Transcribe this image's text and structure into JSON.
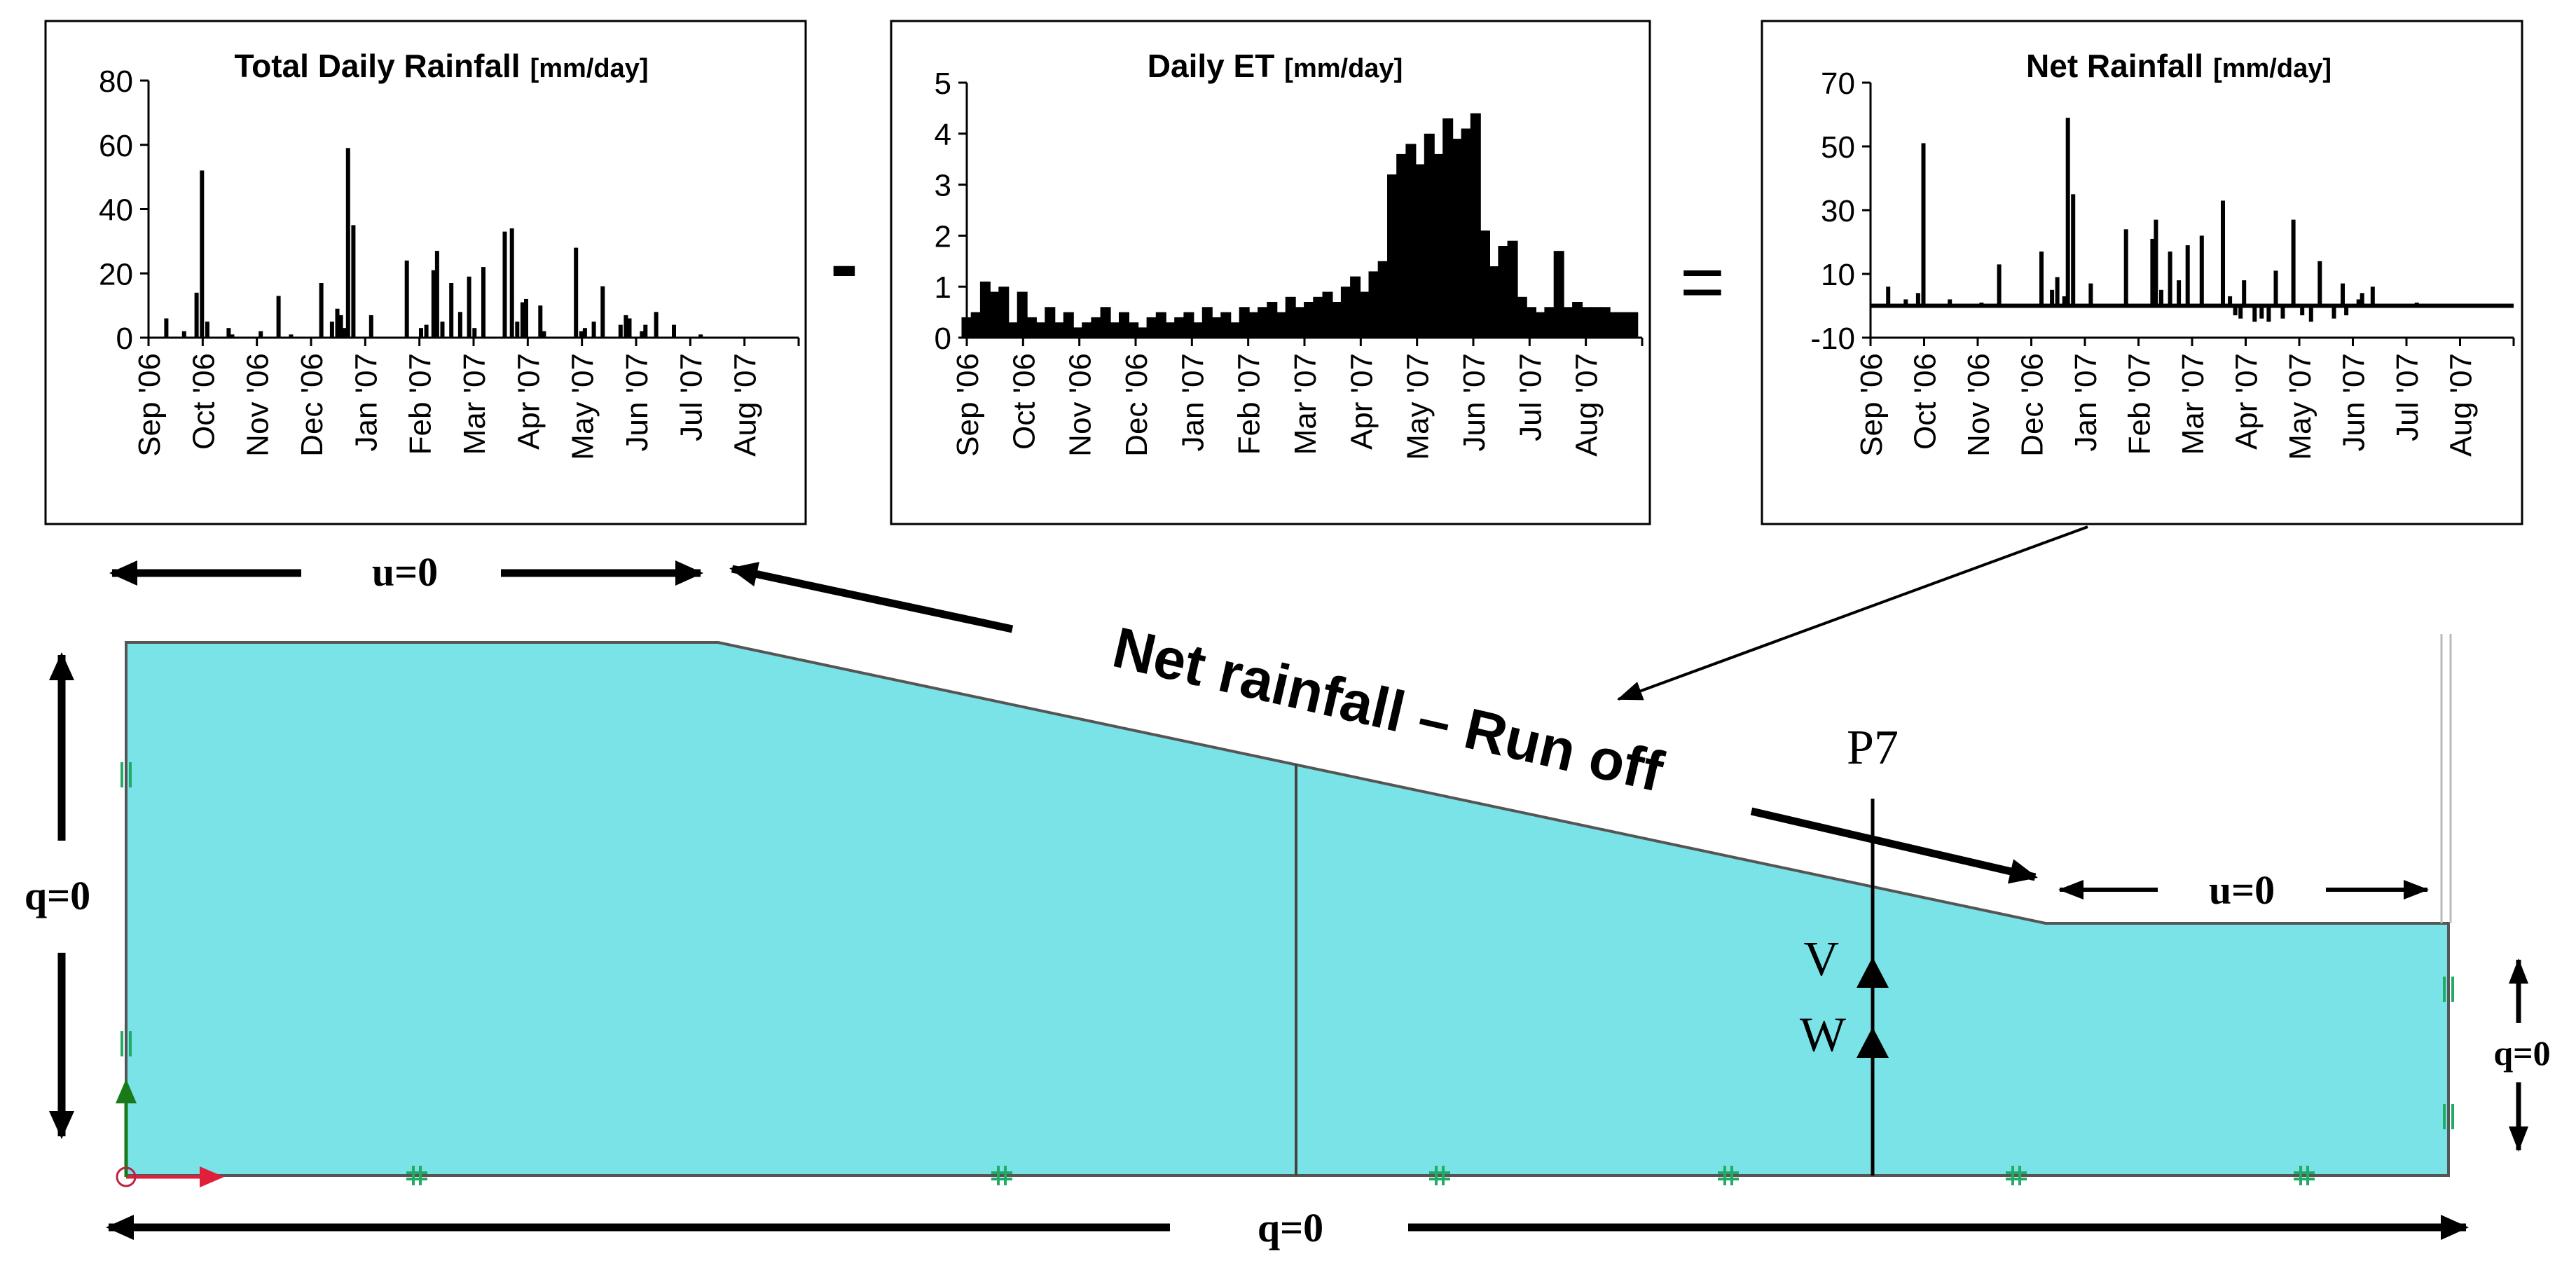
{
  "colors": {
    "domain_fill": "#7ae3e8",
    "domain_stroke": "#555555",
    "bar": "#000000",
    "node_marker": "#22aa66",
    "axis_x_marker": "#e0203a",
    "axis_y_marker": "#1a7a1a"
  },
  "operators": {
    "minus": "-",
    "equals": "="
  },
  "chart_data": [
    {
      "type": "bar",
      "title": "Total Daily Rainfall",
      "unit": "[mm/day]",
      "ylim": [
        0,
        80
      ],
      "yticks": [
        "0",
        "20",
        "40",
        "60",
        "80"
      ],
      "xlim": [
        0,
        365
      ],
      "categories": [
        "Sep '06",
        "Oct '06",
        "Nov '06",
        "Dec '06",
        "Jan '07",
        "Feb '07",
        "Mar '07",
        "Apr '07",
        "May '07",
        "Jun '07",
        "Jul '07",
        "Aug '07"
      ],
      "x": [
        10,
        20,
        27,
        30,
        33,
        45,
        47,
        63,
        73,
        80,
        97,
        103,
        106,
        108,
        110,
        112,
        115,
        125,
        145,
        153,
        156,
        160,
        162,
        165,
        170,
        175,
        180,
        183,
        188,
        200,
        204,
        207,
        210,
        212,
        220,
        222,
        240,
        243,
        245,
        250,
        255,
        265,
        268,
        270,
        277,
        279,
        285,
        295,
        310
      ],
      "values": [
        6,
        2,
        14,
        52,
        5,
        3,
        1,
        2,
        13,
        1,
        17,
        5,
        9,
        7,
        3,
        59,
        35,
        7,
        24,
        3,
        4,
        21,
        27,
        5,
        17,
        8,
        19,
        3,
        22,
        33,
        34,
        5,
        11,
        12,
        10,
        2,
        28,
        2,
        3,
        5,
        16,
        4,
        7,
        6,
        2,
        4,
        8,
        4,
        1
      ]
    },
    {
      "type": "bar",
      "title": "Daily ET",
      "unit": "[mm/day]",
      "ylim": [
        0,
        5
      ],
      "yticks": [
        "0",
        "1",
        "2",
        "3",
        "4",
        "5"
      ],
      "xlim": [
        0,
        365
      ],
      "categories": [
        "Sep '06",
        "Oct '06",
        "Nov '06",
        "Dec '06",
        "Jan '07",
        "Feb '07",
        "Mar '07",
        "Apr '07",
        "May '07",
        "Jun '07",
        "Jul '07",
        "Aug '07"
      ],
      "x": [
        0,
        5,
        10,
        15,
        20,
        25,
        30,
        35,
        40,
        45,
        50,
        55,
        60,
        65,
        70,
        75,
        80,
        85,
        90,
        95,
        100,
        105,
        110,
        115,
        120,
        125,
        130,
        135,
        140,
        145,
        150,
        155,
        160,
        165,
        170,
        175,
        180,
        185,
        190,
        195,
        200,
        205,
        210,
        215,
        220,
        225,
        230,
        235,
        240,
        245,
        250,
        255,
        260,
        265,
        270,
        275,
        280,
        285,
        290,
        295,
        300,
        305,
        310,
        315,
        320,
        325,
        330,
        335,
        340,
        345,
        350,
        355,
        360
      ],
      "values": [
        0.4,
        0.5,
        1.1,
        0.9,
        1.0,
        0.3,
        0.9,
        0.4,
        0.3,
        0.6,
        0.3,
        0.5,
        0.2,
        0.3,
        0.4,
        0.6,
        0.3,
        0.5,
        0.3,
        0.2,
        0.4,
        0.5,
        0.3,
        0.4,
        0.5,
        0.3,
        0.6,
        0.4,
        0.5,
        0.3,
        0.6,
        0.5,
        0.6,
        0.7,
        0.5,
        0.8,
        0.6,
        0.7,
        0.8,
        0.9,
        0.7,
        1.0,
        1.2,
        0.9,
        1.3,
        1.5,
        3.2,
        3.6,
        3.8,
        3.4,
        4.0,
        3.6,
        4.3,
        3.9,
        4.1,
        4.4,
        2.1,
        1.4,
        1.8,
        1.9,
        0.8,
        0.6,
        0.5,
        0.6,
        1.7,
        0.6,
        0.7,
        0.6,
        0.6,
        0.6,
        0.5,
        0.5,
        0.5
      ]
    },
    {
      "type": "bar",
      "title": "Net Rainfall",
      "unit": "[mm/day]",
      "ylim": [
        -10,
        70
      ],
      "yticks": [
        "-10",
        "10",
        "30",
        "50",
        "70"
      ],
      "xlim": [
        0,
        365
      ],
      "categories": [
        "Sep '06",
        "Oct '06",
        "Nov '06",
        "Dec '06",
        "Jan '07",
        "Feb '07",
        "Mar '07",
        "Apr '07",
        "May '07",
        "Jun '07",
        "Jul '07",
        "Aug '07"
      ],
      "x": [
        10,
        20,
        27,
        30,
        45,
        63,
        73,
        97,
        103,
        106,
        110,
        112,
        115,
        125,
        145,
        160,
        162,
        165,
        170,
        175,
        180,
        188,
        200,
        204,
        207,
        210,
        212,
        218,
        222,
        226,
        230,
        234,
        240,
        245,
        250,
        255,
        263,
        268,
        270,
        277,
        279,
        285,
        310
      ],
      "values": [
        6,
        2,
        4,
        51,
        2,
        1,
        13,
        17,
        5,
        9,
        3,
        59,
        35,
        7,
        24,
        21,
        27,
        5,
        17,
        8,
        19,
        22,
        33,
        3,
        -3,
        -4,
        8,
        -5,
        -4,
        -5,
        11,
        -4,
        27,
        -3,
        -5,
        14,
        -4,
        7,
        -3,
        2,
        4,
        6,
        1
      ]
    }
  ],
  "diagram": {
    "top_boundary_left": "u=0",
    "left_boundary": "q=0",
    "slope_boundary": "Net rainfall – Run off",
    "right_upper_boundary": "u=0",
    "right_boundary": "q=0",
    "bottom_boundary": "q=0",
    "profile_label": "P7",
    "point_upper": "V",
    "point_lower": "W"
  }
}
